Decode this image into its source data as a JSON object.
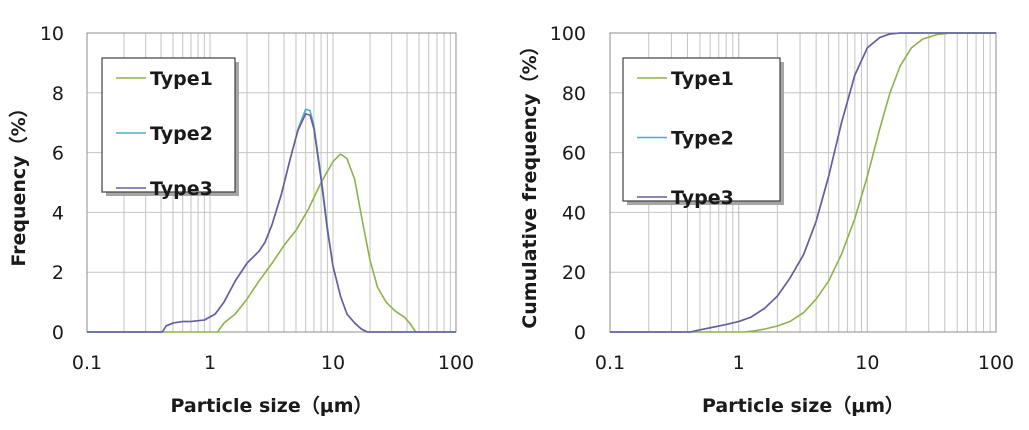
{
  "chart_data": [
    {
      "type": "line",
      "xlabel": "Particle size（μm）",
      "ylabel": "Frequency（%）",
      "xscale": "log",
      "xlim": [
        0.1,
        100
      ],
      "ylim": [
        0,
        10
      ],
      "xticks": [
        "0.1",
        "1",
        "10",
        "100"
      ],
      "yticks": [
        "0",
        "2",
        "4",
        "6",
        "8",
        "10"
      ],
      "grid": true,
      "legend": "upper-left",
      "series": [
        {
          "name": "Type1",
          "color": "#8db24a",
          "points": [
            [
              0.1,
              0
            ],
            [
              1.15,
              0
            ],
            [
              1.3,
              0.3
            ],
            [
              1.6,
              0.6
            ],
            [
              2.0,
              1.1
            ],
            [
              2.5,
              1.7
            ],
            [
              3.2,
              2.3
            ],
            [
              4.0,
              2.9
            ],
            [
              5.0,
              3.4
            ],
            [
              6.3,
              4.1
            ],
            [
              8.0,
              5.0
            ],
            [
              10.0,
              5.7
            ],
            [
              11.5,
              5.95
            ],
            [
              13.0,
              5.8
            ],
            [
              15.0,
              5.1
            ],
            [
              17.0,
              3.9
            ],
            [
              20.0,
              2.4
            ],
            [
              23.0,
              1.5
            ],
            [
              27.0,
              1.0
            ],
            [
              32.0,
              0.7
            ],
            [
              38.0,
              0.5
            ],
            [
              42.0,
              0.3
            ],
            [
              47.0,
              0.0
            ],
            [
              100,
              0
            ]
          ]
        },
        {
          "name": "Type2",
          "color": "#4bacc6",
          "points": [
            [
              0.1,
              0
            ],
            [
              0.41,
              0
            ],
            [
              0.44,
              0.2
            ],
            [
              0.5,
              0.3
            ],
            [
              0.6,
              0.35
            ],
            [
              0.7,
              0.35
            ],
            [
              0.9,
              0.4
            ],
            [
              1.1,
              0.6
            ],
            [
              1.3,
              1.0
            ],
            [
              1.6,
              1.7
            ],
            [
              2.0,
              2.3
            ],
            [
              2.5,
              2.7
            ],
            [
              2.8,
              3.0
            ],
            [
              3.2,
              3.6
            ],
            [
              3.8,
              4.6
            ],
            [
              4.5,
              5.8
            ],
            [
              5.2,
              6.8
            ],
            [
              6.0,
              7.45
            ],
            [
              6.5,
              7.4
            ],
            [
              7.0,
              6.9
            ],
            [
              8.0,
              5.2
            ],
            [
              9.0,
              3.5
            ],
            [
              10.0,
              2.2
            ],
            [
              11.5,
              1.2
            ],
            [
              13.0,
              0.6
            ],
            [
              15.0,
              0.3
            ],
            [
              17.0,
              0.1
            ],
            [
              19.0,
              0.0
            ],
            [
              100,
              0
            ]
          ]
        },
        {
          "name": "Type3",
          "color": "#6a5c9e",
          "points": [
            [
              0.1,
              0
            ],
            [
              0.41,
              0
            ],
            [
              0.44,
              0.2
            ],
            [
              0.5,
              0.3
            ],
            [
              0.6,
              0.35
            ],
            [
              0.7,
              0.35
            ],
            [
              0.9,
              0.4
            ],
            [
              1.1,
              0.6
            ],
            [
              1.3,
              1.0
            ],
            [
              1.6,
              1.7
            ],
            [
              2.0,
              2.3
            ],
            [
              2.5,
              2.7
            ],
            [
              2.8,
              3.0
            ],
            [
              3.2,
              3.6
            ],
            [
              3.8,
              4.6
            ],
            [
              4.5,
              5.8
            ],
            [
              5.2,
              6.75
            ],
            [
              6.0,
              7.3
            ],
            [
              6.5,
              7.25
            ],
            [
              7.0,
              6.8
            ],
            [
              8.0,
              5.1
            ],
            [
              9.0,
              3.4
            ],
            [
              10.0,
              2.2
            ],
            [
              11.5,
              1.2
            ],
            [
              13.0,
              0.6
            ],
            [
              15.0,
              0.3
            ],
            [
              17.0,
              0.1
            ],
            [
              19.0,
              0.0
            ],
            [
              100,
              0
            ]
          ]
        }
      ]
    },
    {
      "type": "line",
      "xlabel": "Particle size（μm）",
      "ylabel": "Cumulative frequency（%）",
      "xscale": "log",
      "xlim": [
        0.1,
        100
      ],
      "ylim": [
        0,
        100
      ],
      "xticks": [
        "0.1",
        "1",
        "10",
        "100"
      ],
      "yticks": [
        "0",
        "20",
        "40",
        "60",
        "80",
        "100"
      ],
      "grid": true,
      "legend": "upper-left",
      "series": [
        {
          "name": "Type1",
          "color": "#8db24a",
          "points": [
            [
              0.1,
              0
            ],
            [
              1.1,
              0
            ],
            [
              1.3,
              0.3
            ],
            [
              1.6,
              1.0
            ],
            [
              2.0,
              2.0
            ],
            [
              2.5,
              3.5
            ],
            [
              3.2,
              6.5
            ],
            [
              4.0,
              11
            ],
            [
              5.0,
              17
            ],
            [
              6.3,
              26
            ],
            [
              8.0,
              38
            ],
            [
              10.0,
              52
            ],
            [
              12.5,
              68
            ],
            [
              15.0,
              80
            ],
            [
              18.0,
              89
            ],
            [
              22.0,
              95
            ],
            [
              27.0,
              98
            ],
            [
              35.0,
              99.5
            ],
            [
              45.0,
              100
            ],
            [
              100,
              100
            ]
          ]
        },
        {
          "name": "Type2",
          "color": "#4bacc6",
          "points": [
            [
              0.1,
              0
            ],
            [
              0.42,
              0
            ],
            [
              0.5,
              0.7
            ],
            [
              0.6,
              1.4
            ],
            [
              0.8,
              2.5
            ],
            [
              1.0,
              3.5
            ],
            [
              1.25,
              5
            ],
            [
              1.6,
              8
            ],
            [
              2.0,
              12
            ],
            [
              2.5,
              18
            ],
            [
              3.2,
              26
            ],
            [
              4.0,
              37
            ],
            [
              5.0,
              52
            ],
            [
              6.3,
              70
            ],
            [
              8.0,
              86
            ],
            [
              10.0,
              95
            ],
            [
              12.5,
              98.5
            ],
            [
              15.0,
              99.7
            ],
            [
              18.0,
              100
            ],
            [
              100,
              100
            ]
          ]
        },
        {
          "name": "Type3",
          "color": "#6a5c9e",
          "points": [
            [
              0.1,
              0
            ],
            [
              0.42,
              0
            ],
            [
              0.5,
              0.7
            ],
            [
              0.6,
              1.4
            ],
            [
              0.8,
              2.5
            ],
            [
              1.0,
              3.5
            ],
            [
              1.25,
              5
            ],
            [
              1.6,
              8
            ],
            [
              2.0,
              12
            ],
            [
              2.5,
              18
            ],
            [
              3.2,
              26
            ],
            [
              4.0,
              37
            ],
            [
              5.0,
              52
            ],
            [
              6.3,
              70
            ],
            [
              8.0,
              86
            ],
            [
              10.0,
              95
            ],
            [
              12.5,
              98.5
            ],
            [
              15.0,
              99.7
            ],
            [
              18.0,
              100
            ],
            [
              100,
              100
            ]
          ]
        }
      ]
    }
  ]
}
